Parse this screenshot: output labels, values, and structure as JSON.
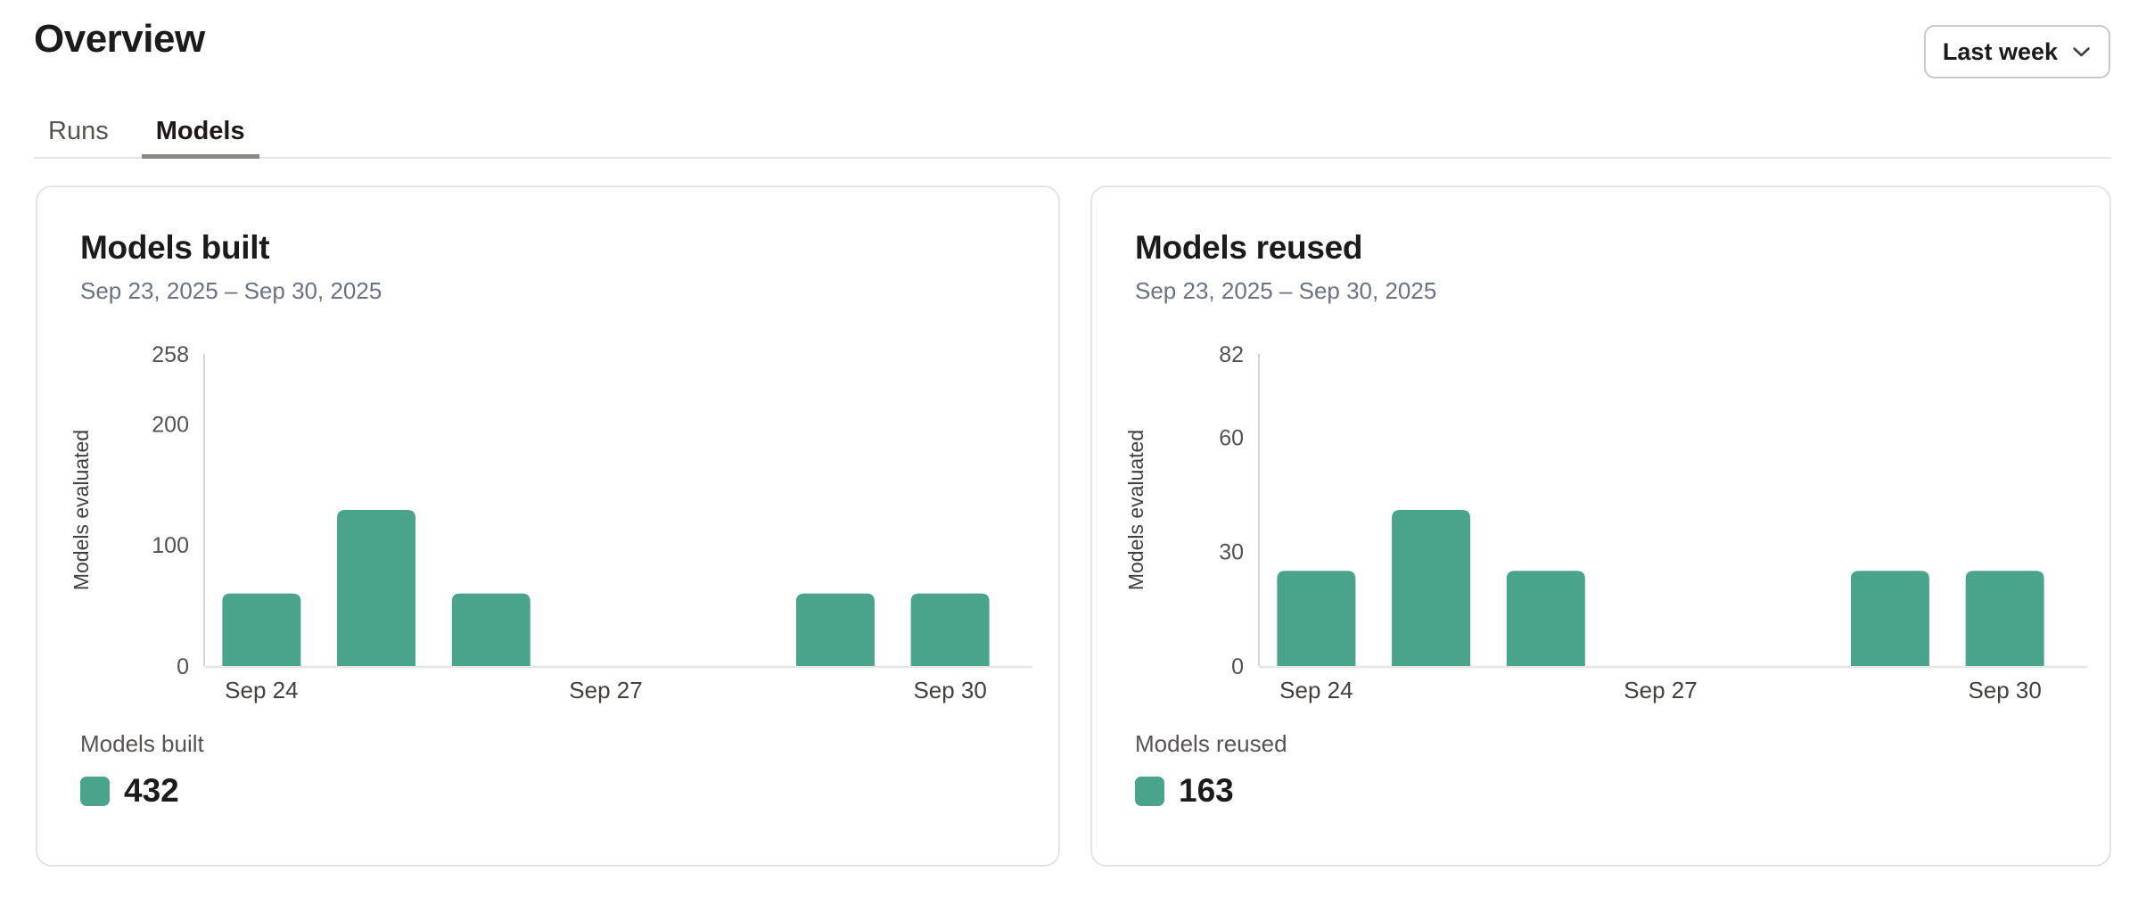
{
  "header": {
    "title": "Overview",
    "period_selector": {
      "label": "Last week",
      "icon": "chevron-down-icon"
    }
  },
  "tabs": [
    {
      "label": "Runs",
      "active": false
    },
    {
      "label": "Models",
      "active": true
    }
  ],
  "colors": {
    "accent": "#4aa38b",
    "axis_line": "#d6d5d3",
    "baseline": "#e7e6e4",
    "tick_text": "#525252",
    "axis_label_text": "#3f3f46",
    "date_text": "#44403c"
  },
  "chart_data": [
    {
      "type": "bar",
      "title": "Models built",
      "subtitle": "Sep 23, 2025 – Sep 30, 2025",
      "ylabel": "Models evaluated",
      "xlabel": "",
      "categories": [
        "Sep 24",
        "Sep 25",
        "Sep 26",
        "Sep 27",
        "Sep 28",
        "Sep 29",
        "Sep 30"
      ],
      "values": [
        60,
        129,
        60,
        0,
        0,
        60,
        60
      ],
      "ylim": [
        0,
        258
      ],
      "y_ticks": [
        0,
        100,
        200,
        258
      ],
      "x_ticks": [
        {
          "index": 0,
          "label": "Sep 24"
        },
        {
          "index": 3,
          "label": "Sep 27"
        },
        {
          "index": 6,
          "label": "Sep 30"
        }
      ],
      "grid": false,
      "legend": {
        "position": "bottom-left",
        "label": "Models built",
        "total": "432"
      }
    },
    {
      "type": "bar",
      "title": "Models reused",
      "subtitle": "Sep 23, 2025 – Sep 30, 2025",
      "ylabel": "Models evaluated",
      "xlabel": "",
      "categories": [
        "Sep 24",
        "Sep 25",
        "Sep 26",
        "Sep 27",
        "Sep 28",
        "Sep 29",
        "Sep 30"
      ],
      "values": [
        25,
        41,
        25,
        0,
        0,
        25,
        25
      ],
      "ylim": [
        0,
        82
      ],
      "y_ticks": [
        0,
        30,
        60,
        82
      ],
      "x_ticks": [
        {
          "index": 0,
          "label": "Sep 24"
        },
        {
          "index": 3,
          "label": "Sep 27"
        },
        {
          "index": 6,
          "label": "Sep 30"
        }
      ],
      "grid": false,
      "legend": {
        "position": "bottom-left",
        "label": "Models reused",
        "total": "163"
      }
    }
  ]
}
